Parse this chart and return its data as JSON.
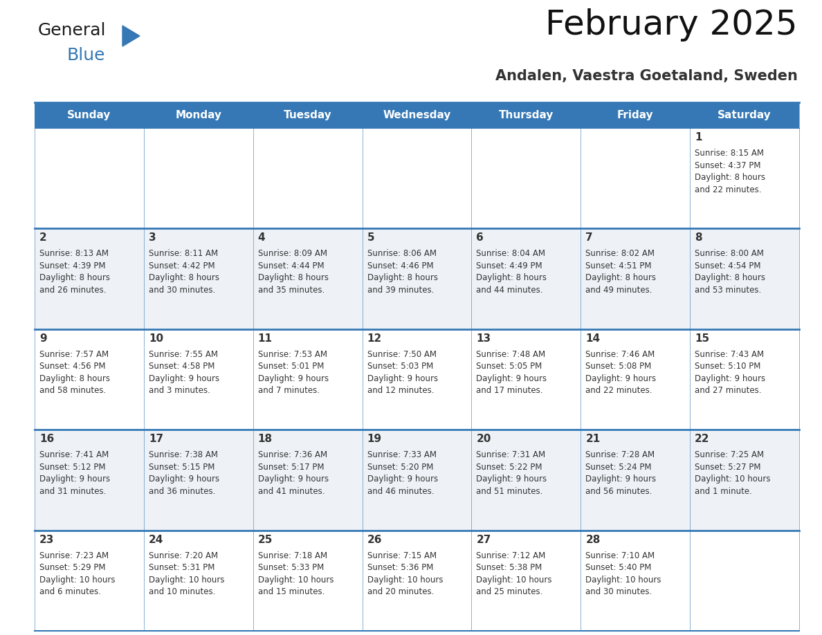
{
  "title": "February 2025",
  "subtitle": "Andalen, Vaestra Goetaland, Sweden",
  "header_color": "#3578b5",
  "header_text_color": "#ffffff",
  "row_bg_odd": "#eef2f7",
  "row_bg_even": "#ffffff",
  "border_color": "#3578b5",
  "text_color": "#333333",
  "days_of_week": [
    "Sunday",
    "Monday",
    "Tuesday",
    "Wednesday",
    "Thursday",
    "Friday",
    "Saturday"
  ],
  "calendar_data": [
    [
      {
        "day": null,
        "info": null
      },
      {
        "day": null,
        "info": null
      },
      {
        "day": null,
        "info": null
      },
      {
        "day": null,
        "info": null
      },
      {
        "day": null,
        "info": null
      },
      {
        "day": null,
        "info": null
      },
      {
        "day": 1,
        "info": "Sunrise: 8:15 AM\nSunset: 4:37 PM\nDaylight: 8 hours\nand 22 minutes."
      }
    ],
    [
      {
        "day": 2,
        "info": "Sunrise: 8:13 AM\nSunset: 4:39 PM\nDaylight: 8 hours\nand 26 minutes."
      },
      {
        "day": 3,
        "info": "Sunrise: 8:11 AM\nSunset: 4:42 PM\nDaylight: 8 hours\nand 30 minutes."
      },
      {
        "day": 4,
        "info": "Sunrise: 8:09 AM\nSunset: 4:44 PM\nDaylight: 8 hours\nand 35 minutes."
      },
      {
        "day": 5,
        "info": "Sunrise: 8:06 AM\nSunset: 4:46 PM\nDaylight: 8 hours\nand 39 minutes."
      },
      {
        "day": 6,
        "info": "Sunrise: 8:04 AM\nSunset: 4:49 PM\nDaylight: 8 hours\nand 44 minutes."
      },
      {
        "day": 7,
        "info": "Sunrise: 8:02 AM\nSunset: 4:51 PM\nDaylight: 8 hours\nand 49 minutes."
      },
      {
        "day": 8,
        "info": "Sunrise: 8:00 AM\nSunset: 4:54 PM\nDaylight: 8 hours\nand 53 minutes."
      }
    ],
    [
      {
        "day": 9,
        "info": "Sunrise: 7:57 AM\nSunset: 4:56 PM\nDaylight: 8 hours\nand 58 minutes."
      },
      {
        "day": 10,
        "info": "Sunrise: 7:55 AM\nSunset: 4:58 PM\nDaylight: 9 hours\nand 3 minutes."
      },
      {
        "day": 11,
        "info": "Sunrise: 7:53 AM\nSunset: 5:01 PM\nDaylight: 9 hours\nand 7 minutes."
      },
      {
        "day": 12,
        "info": "Sunrise: 7:50 AM\nSunset: 5:03 PM\nDaylight: 9 hours\nand 12 minutes."
      },
      {
        "day": 13,
        "info": "Sunrise: 7:48 AM\nSunset: 5:05 PM\nDaylight: 9 hours\nand 17 minutes."
      },
      {
        "day": 14,
        "info": "Sunrise: 7:46 AM\nSunset: 5:08 PM\nDaylight: 9 hours\nand 22 minutes."
      },
      {
        "day": 15,
        "info": "Sunrise: 7:43 AM\nSunset: 5:10 PM\nDaylight: 9 hours\nand 27 minutes."
      }
    ],
    [
      {
        "day": 16,
        "info": "Sunrise: 7:41 AM\nSunset: 5:12 PM\nDaylight: 9 hours\nand 31 minutes."
      },
      {
        "day": 17,
        "info": "Sunrise: 7:38 AM\nSunset: 5:15 PM\nDaylight: 9 hours\nand 36 minutes."
      },
      {
        "day": 18,
        "info": "Sunrise: 7:36 AM\nSunset: 5:17 PM\nDaylight: 9 hours\nand 41 minutes."
      },
      {
        "day": 19,
        "info": "Sunrise: 7:33 AM\nSunset: 5:20 PM\nDaylight: 9 hours\nand 46 minutes."
      },
      {
        "day": 20,
        "info": "Sunrise: 7:31 AM\nSunset: 5:22 PM\nDaylight: 9 hours\nand 51 minutes."
      },
      {
        "day": 21,
        "info": "Sunrise: 7:28 AM\nSunset: 5:24 PM\nDaylight: 9 hours\nand 56 minutes."
      },
      {
        "day": 22,
        "info": "Sunrise: 7:25 AM\nSunset: 5:27 PM\nDaylight: 10 hours\nand 1 minute."
      }
    ],
    [
      {
        "day": 23,
        "info": "Sunrise: 7:23 AM\nSunset: 5:29 PM\nDaylight: 10 hours\nand 6 minutes."
      },
      {
        "day": 24,
        "info": "Sunrise: 7:20 AM\nSunset: 5:31 PM\nDaylight: 10 hours\nand 10 minutes."
      },
      {
        "day": 25,
        "info": "Sunrise: 7:18 AM\nSunset: 5:33 PM\nDaylight: 10 hours\nand 15 minutes."
      },
      {
        "day": 26,
        "info": "Sunrise: 7:15 AM\nSunset: 5:36 PM\nDaylight: 10 hours\nand 20 minutes."
      },
      {
        "day": 27,
        "info": "Sunrise: 7:12 AM\nSunset: 5:38 PM\nDaylight: 10 hours\nand 25 minutes."
      },
      {
        "day": 28,
        "info": "Sunrise: 7:10 AM\nSunset: 5:40 PM\nDaylight: 10 hours\nand 30 minutes."
      },
      {
        "day": null,
        "info": null
      }
    ]
  ],
  "logo_color_general": "#1a1a1a",
  "logo_color_blue": "#3578b5",
  "logo_triangle_color": "#3578b5",
  "title_fontsize": 36,
  "subtitle_fontsize": 15,
  "header_fontsize": 11,
  "day_num_fontsize": 11,
  "info_fontsize": 8.5
}
